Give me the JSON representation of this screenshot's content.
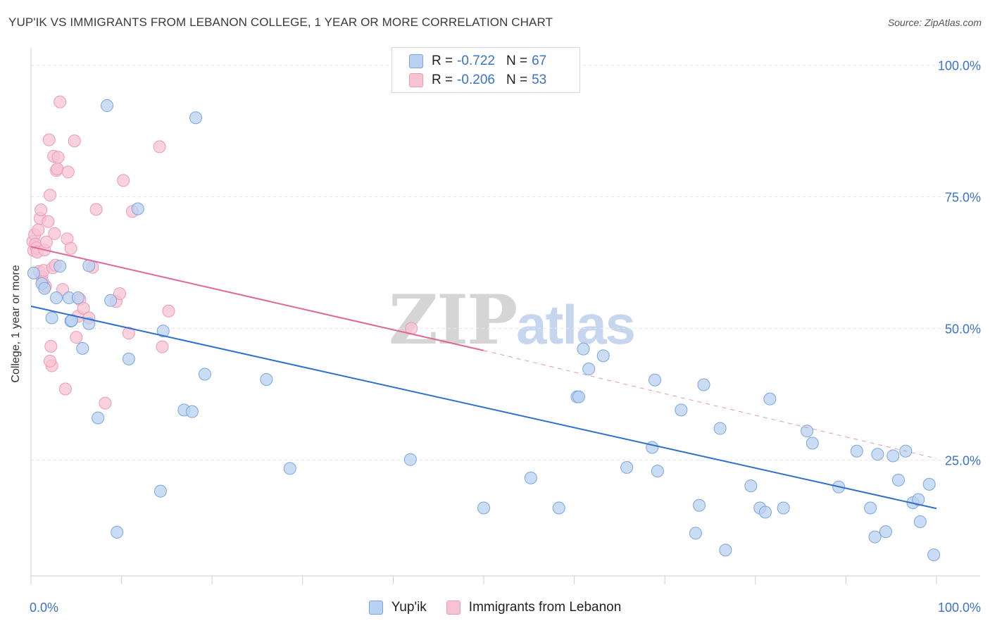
{
  "title": "YUP'IK VS IMMIGRANTS FROM LEBANON COLLEGE, 1 YEAR OR MORE CORRELATION CHART",
  "source": "Source: ZipAtlas.com",
  "watermark": {
    "zip": "ZIP",
    "atlas": "atlas"
  },
  "colors": {
    "blue_fill": "#b9d2f2",
    "blue_stroke": "#7aa5dc",
    "blue_line": "#2f6fcc",
    "pink_fill": "#f7c3d3",
    "pink_stroke": "#ec9ab4",
    "pink_line": "#e0679a",
    "axis_text": "#3b72c6",
    "grid": "#e6e6e6"
  },
  "legend": {
    "rows": [
      {
        "r_label": "R =",
        "r_value": "-0.722",
        "n_label": "N =",
        "n_value": "67"
      },
      {
        "r_label": "R =",
        "r_value": "-0.206",
        "n_label": "N =",
        "n_value": "53"
      }
    ]
  },
  "bottom_legend": [
    "Yup'ik",
    "Immigrants from Lebanon"
  ],
  "chart_data": {
    "type": "scatter",
    "title": "YUP'IK VS IMMIGRANTS FROM LEBANON COLLEGE, 1 YEAR OR MORE CORRELATION CHART",
    "xlabel": "",
    "ylabel": "College, 1 year or more",
    "xlim": [
      0,
      100
    ],
    "ylim": [
      3,
      103
    ],
    "x_tick_labels": [
      "0.0%",
      "100.0%"
    ],
    "y_tick_labels": [
      "25.0%",
      "50.0%",
      "75.0%",
      "100.0%"
    ],
    "y_tick_values": [
      25,
      50,
      75,
      100
    ],
    "grid": true,
    "legend_placement": "top-center",
    "series": [
      {
        "name": "Yup'ik",
        "r": -0.722,
        "n": 67,
        "trend": {
          "x": [
            0,
            100
          ],
          "y": [
            54.2,
            15.8
          ]
        },
        "points": [
          [
            0.3,
            60.5
          ],
          [
            1.2,
            58.5
          ],
          [
            1.5,
            57.6
          ],
          [
            2.3,
            52.0
          ],
          [
            2.8,
            55.8
          ],
          [
            3.2,
            61.8
          ],
          [
            4.2,
            55.8
          ],
          [
            4.4,
            51.4
          ],
          [
            5.2,
            55.8
          ],
          [
            5.7,
            46.2
          ],
          [
            6.4,
            61.9
          ],
          [
            6.4,
            50.9
          ],
          [
            7.4,
            33.0
          ],
          [
            8.4,
            92.3
          ],
          [
            8.8,
            55.3
          ],
          [
            9.5,
            11.3
          ],
          [
            10.8,
            44.2
          ],
          [
            11.8,
            72.7
          ],
          [
            14.6,
            49.5
          ],
          [
            14.3,
            19.1
          ],
          [
            16.9,
            34.5
          ],
          [
            17.8,
            34.2
          ],
          [
            18.2,
            90.0
          ],
          [
            19.2,
            41.3
          ],
          [
            26.0,
            40.3
          ],
          [
            28.6,
            23.4
          ],
          [
            41.9,
            25.1
          ],
          [
            50.0,
            15.9
          ],
          [
            55.2,
            21.6
          ],
          [
            58.3,
            15.9
          ],
          [
            60.3,
            37.0
          ],
          [
            60.5,
            37.0
          ],
          [
            61.0,
            46.1
          ],
          [
            61.6,
            42.3
          ],
          [
            63.2,
            44.8
          ],
          [
            65.8,
            23.6
          ],
          [
            68.6,
            27.4
          ],
          [
            68.9,
            40.2
          ],
          [
            69.2,
            22.9
          ],
          [
            71.8,
            34.5
          ],
          [
            73.4,
            11.1
          ],
          [
            73.8,
            16.4
          ],
          [
            74.3,
            39.3
          ],
          [
            76.1,
            31.0
          ],
          [
            76.7,
            7.9
          ],
          [
            79.5,
            20.1
          ],
          [
            80.5,
            15.9
          ],
          [
            81.1,
            15.1
          ],
          [
            81.6,
            36.6
          ],
          [
            83.1,
            15.9
          ],
          [
            85.7,
            30.5
          ],
          [
            86.3,
            28.2
          ],
          [
            89.2,
            19.9
          ],
          [
            91.2,
            26.7
          ],
          [
            92.7,
            15.9
          ],
          [
            93.2,
            10.4
          ],
          [
            93.5,
            26.1
          ],
          [
            94.4,
            11.4
          ],
          [
            95.2,
            25.8
          ],
          [
            95.8,
            21.2
          ],
          [
            96.6,
            26.7
          ],
          [
            97.4,
            16.9
          ],
          [
            98.0,
            17.5
          ],
          [
            98.2,
            13.3
          ],
          [
            99.2,
            20.4
          ],
          [
            99.7,
            7.0
          ],
          [
            4.5,
            51.5
          ]
        ]
      },
      {
        "name": "Immigrants from Lebanon",
        "r": -0.206,
        "n": 53,
        "trend": {
          "x": [
            0,
            50
          ],
          "y": [
            65.5,
            45.8
          ]
        },
        "trend_dashed": {
          "x": [
            50,
            100
          ],
          "y": [
            45.8,
            25.3
          ]
        },
        "points": [
          [
            0.2,
            66.5
          ],
          [
            0.3,
            64.8
          ],
          [
            0.4,
            67.8
          ],
          [
            0.5,
            66.0
          ],
          [
            0.6,
            65.3
          ],
          [
            0.7,
            64.5
          ],
          [
            0.8,
            68.7
          ],
          [
            0.9,
            60.8
          ],
          [
            1.0,
            70.9
          ],
          [
            1.1,
            72.5
          ],
          [
            1.2,
            59.8
          ],
          [
            1.4,
            61.0
          ],
          [
            1.5,
            64.9
          ],
          [
            1.6,
            58.0
          ],
          [
            1.7,
            66.4
          ],
          [
            1.9,
            70.3
          ],
          [
            2.0,
            85.8
          ],
          [
            2.1,
            75.3
          ],
          [
            2.2,
            46.6
          ],
          [
            2.3,
            42.9
          ],
          [
            2.4,
            61.5
          ],
          [
            2.5,
            82.7
          ],
          [
            2.6,
            68.0
          ],
          [
            2.8,
            80.0
          ],
          [
            2.9,
            80.3
          ],
          [
            3.0,
            82.5
          ],
          [
            3.2,
            93.0
          ],
          [
            3.5,
            57.4
          ],
          [
            3.8,
            38.5
          ],
          [
            4.0,
            67.0
          ],
          [
            4.1,
            79.7
          ],
          [
            4.4,
            65.2
          ],
          [
            4.8,
            85.6
          ],
          [
            5.0,
            48.3
          ],
          [
            5.2,
            52.3
          ],
          [
            5.4,
            55.5
          ],
          [
            5.8,
            53.8
          ],
          [
            6.4,
            52.0
          ],
          [
            7.2,
            72.6
          ],
          [
            6.8,
            61.6
          ],
          [
            8.2,
            35.8
          ],
          [
            9.4,
            55.1
          ],
          [
            9.8,
            56.6
          ],
          [
            10.2,
            78.1
          ],
          [
            10.8,
            49.1
          ],
          [
            11.2,
            72.2
          ],
          [
            14.2,
            84.5
          ],
          [
            14.5,
            46.5
          ],
          [
            15.2,
            53.3
          ],
          [
            1.3,
            58.8
          ],
          [
            2.1,
            43.8
          ],
          [
            42.0,
            50.0
          ],
          [
            2.7,
            62.0
          ]
        ]
      }
    ]
  }
}
